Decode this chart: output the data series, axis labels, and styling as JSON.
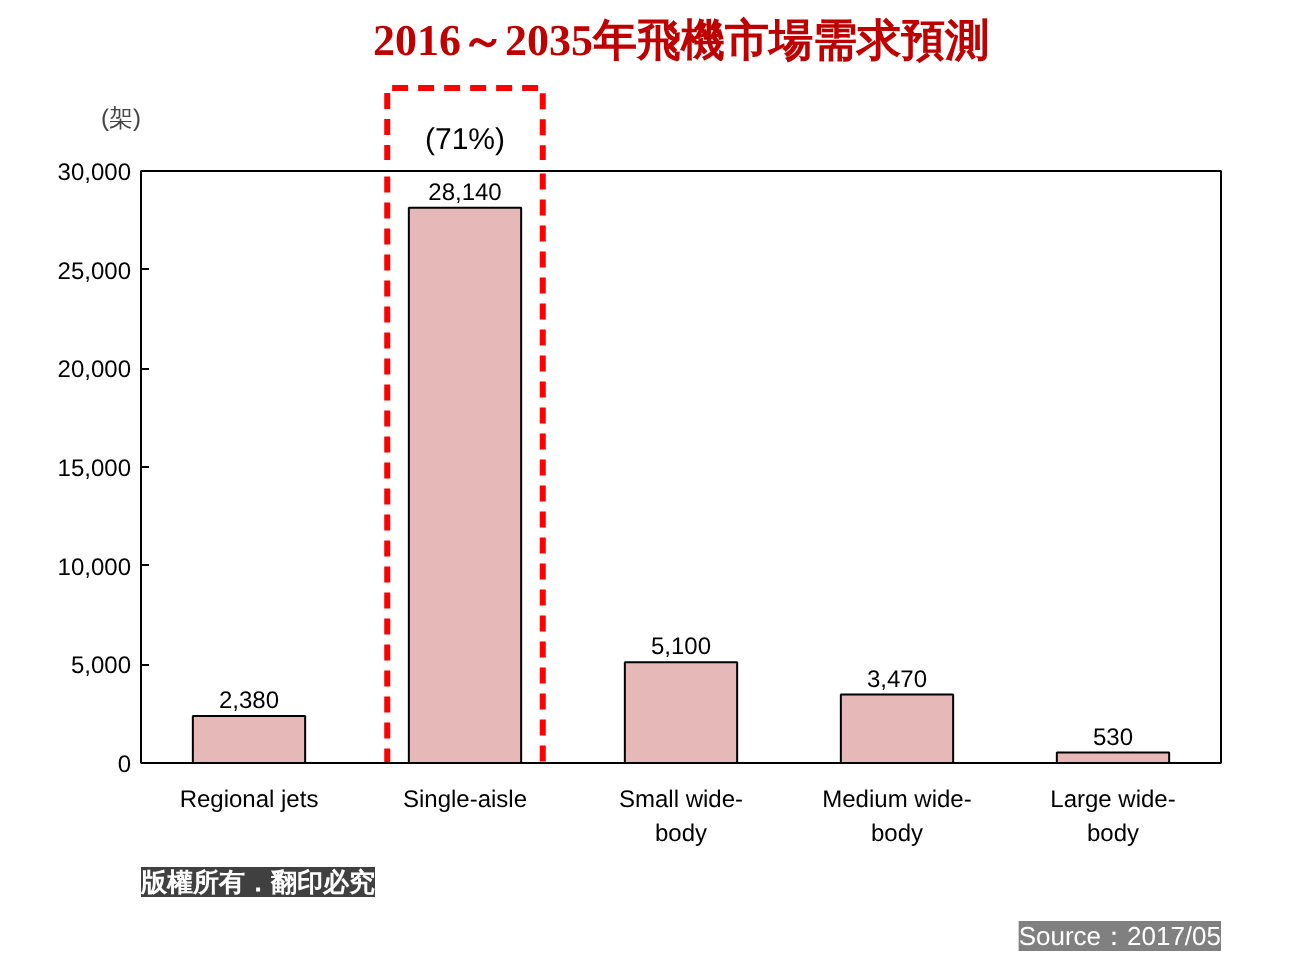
{
  "chart_data": {
    "type": "bar",
    "title": "2016～2035年飛機市場需求預測",
    "ylabel": "(架)",
    "categories": [
      "Regional jets",
      "Single-aisle",
      "Small wide-body",
      "Medium wide-body",
      "Large wide-body"
    ],
    "values": [
      2380,
      28140,
      5100,
      3470,
      530
    ],
    "color": "#e6b9b8",
    "ylim": [
      0,
      30000
    ],
    "yticks": [
      {
        "value": 0,
        "label": "0"
      },
      {
        "value": 5000,
        "label": "5,000"
      },
      {
        "value": 10000,
        "label": "10,000"
      },
      {
        "value": 15000,
        "label": "15,000"
      },
      {
        "value": 20000,
        "label": "20,000"
      },
      {
        "value": 25000,
        "label": "25,000"
      },
      {
        "value": 30000,
        "label": "30,000"
      }
    ],
    "value_labels": [
      "2,380",
      "28,140",
      "5,100",
      "3,470",
      "530"
    ],
    "grid": false,
    "annotations": [
      "(71%)",
      "版權所有．翻印必究",
      "Source：2017/05"
    ]
  }
}
